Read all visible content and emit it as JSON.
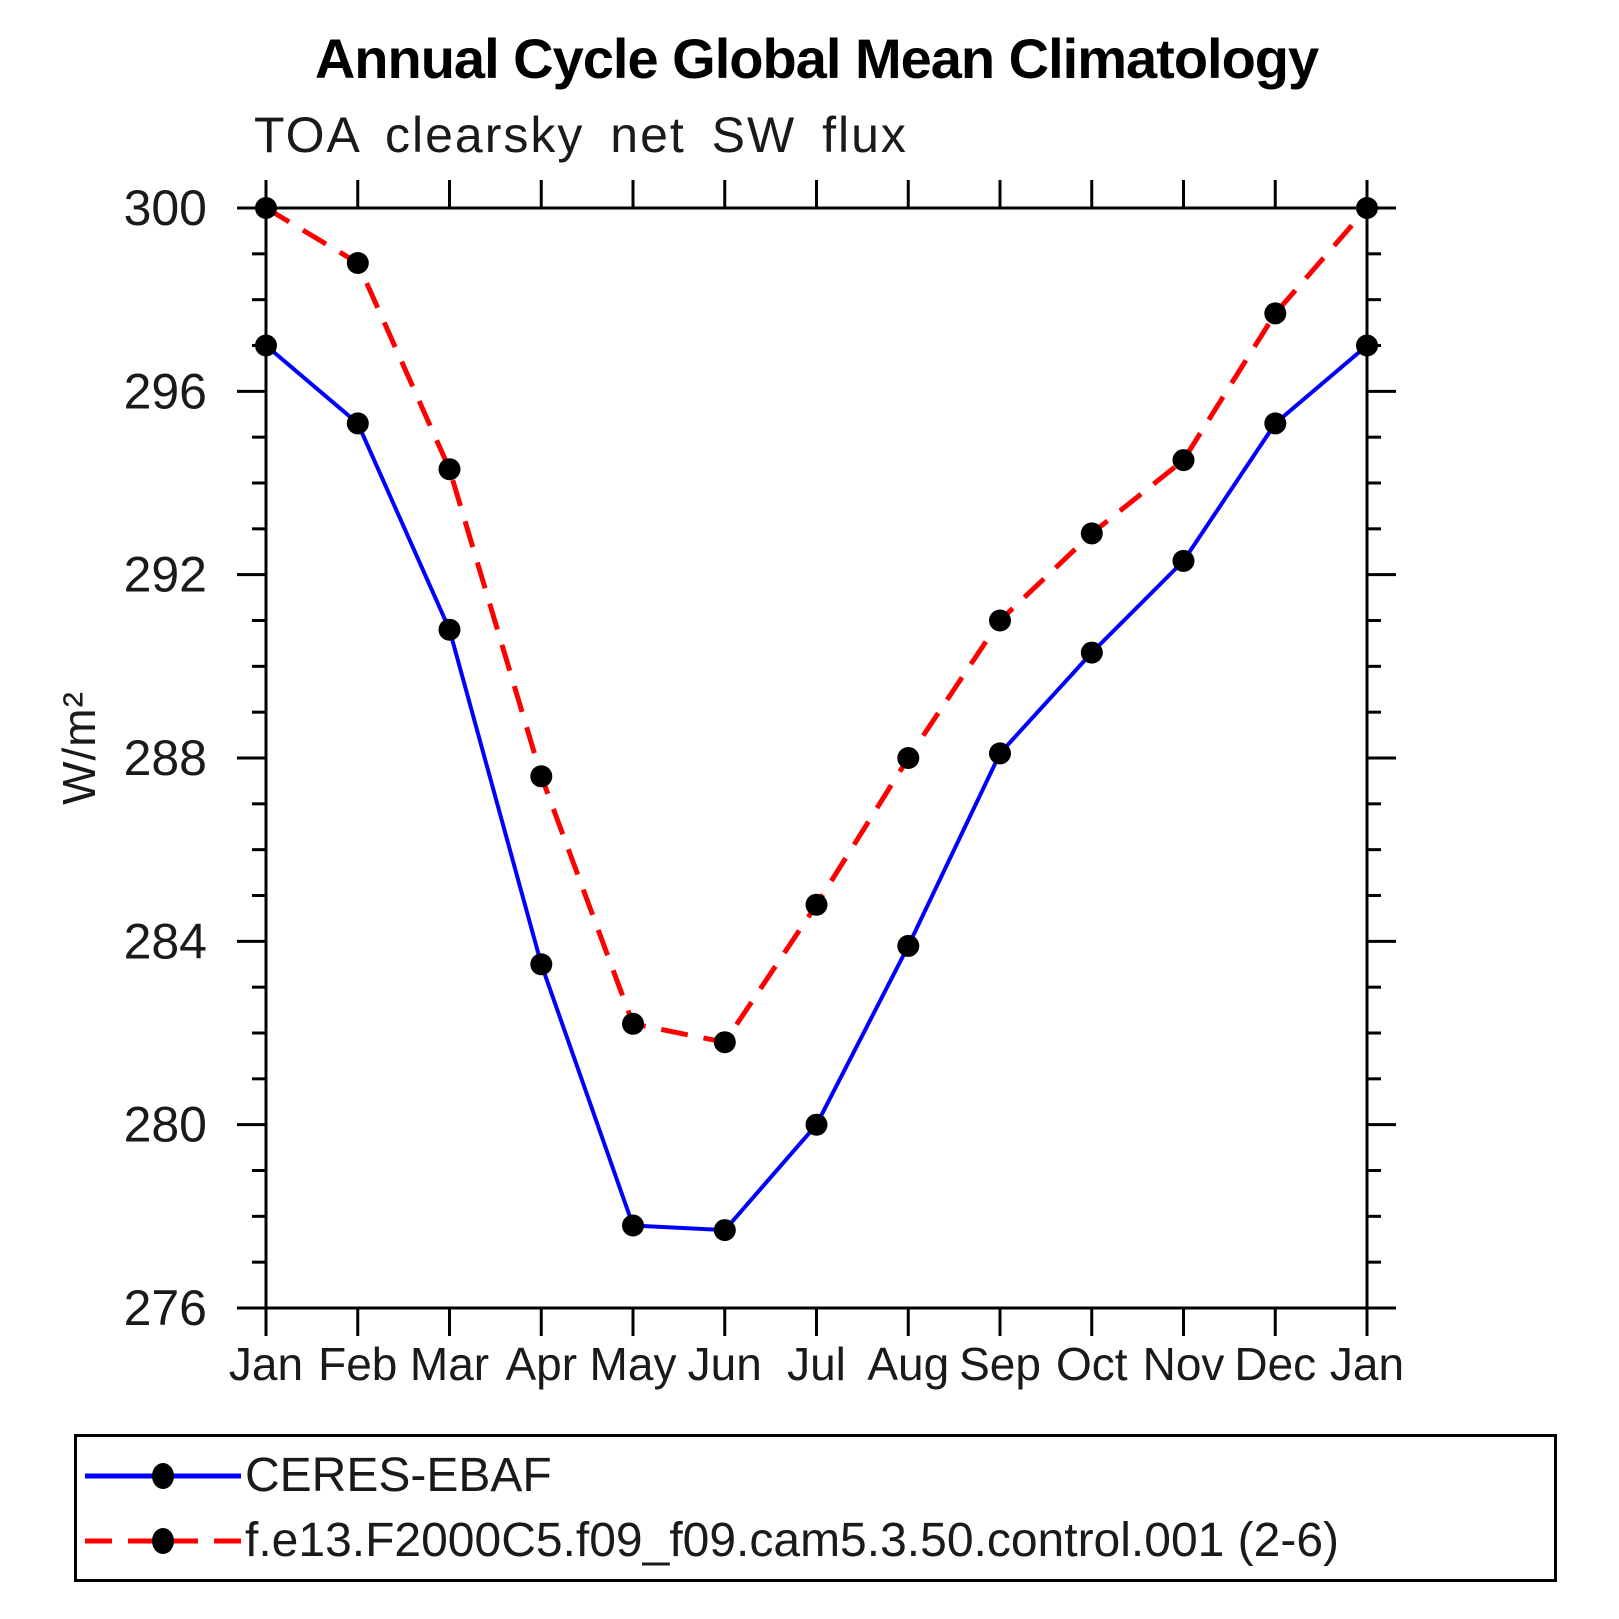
{
  "header": {
    "title": "Annual Cycle Global Mean Climatology",
    "subtitle": "TOA clearsky net SW flux"
  },
  "chart_data": {
    "type": "line",
    "title": "TOA clearsky net SW flux",
    "categories": [
      "Jan",
      "Feb",
      "Mar",
      "Apr",
      "May",
      "Jun",
      "Jul",
      "Aug",
      "Sep",
      "Oct",
      "Nov",
      "Dec",
      "Jan"
    ],
    "xlabel": "",
    "ylabel": "W/m²",
    "ylim": [
      276,
      300
    ],
    "ytick_major": [
      276,
      280,
      284,
      288,
      292,
      296,
      300
    ],
    "ytick_minor_step": 1,
    "grid": false,
    "legend_position": "bottom",
    "frame_color": "#000000",
    "marker_color": "#000000",
    "series": [
      {
        "name": "CERES-EBAF",
        "color": "#0000ff",
        "line_style": "solid",
        "marker": "circle",
        "values": [
          297.0,
          295.3,
          290.8,
          283.5,
          277.8,
          277.7,
          280.0,
          283.9,
          288.1,
          290.3,
          292.3,
          295.3,
          297.0
        ]
      },
      {
        "name": "f.e13.F2000C5.f09_f09.cam5.3.50.control.001 (2-6)",
        "color": "#ff0000",
        "line_style": "dashed",
        "marker": "circle",
        "values": [
          300.0,
          298.8,
          294.3,
          287.6,
          282.2,
          281.8,
          284.8,
          288.0,
          291.0,
          292.9,
          294.5,
          297.7,
          300.0
        ]
      }
    ]
  }
}
